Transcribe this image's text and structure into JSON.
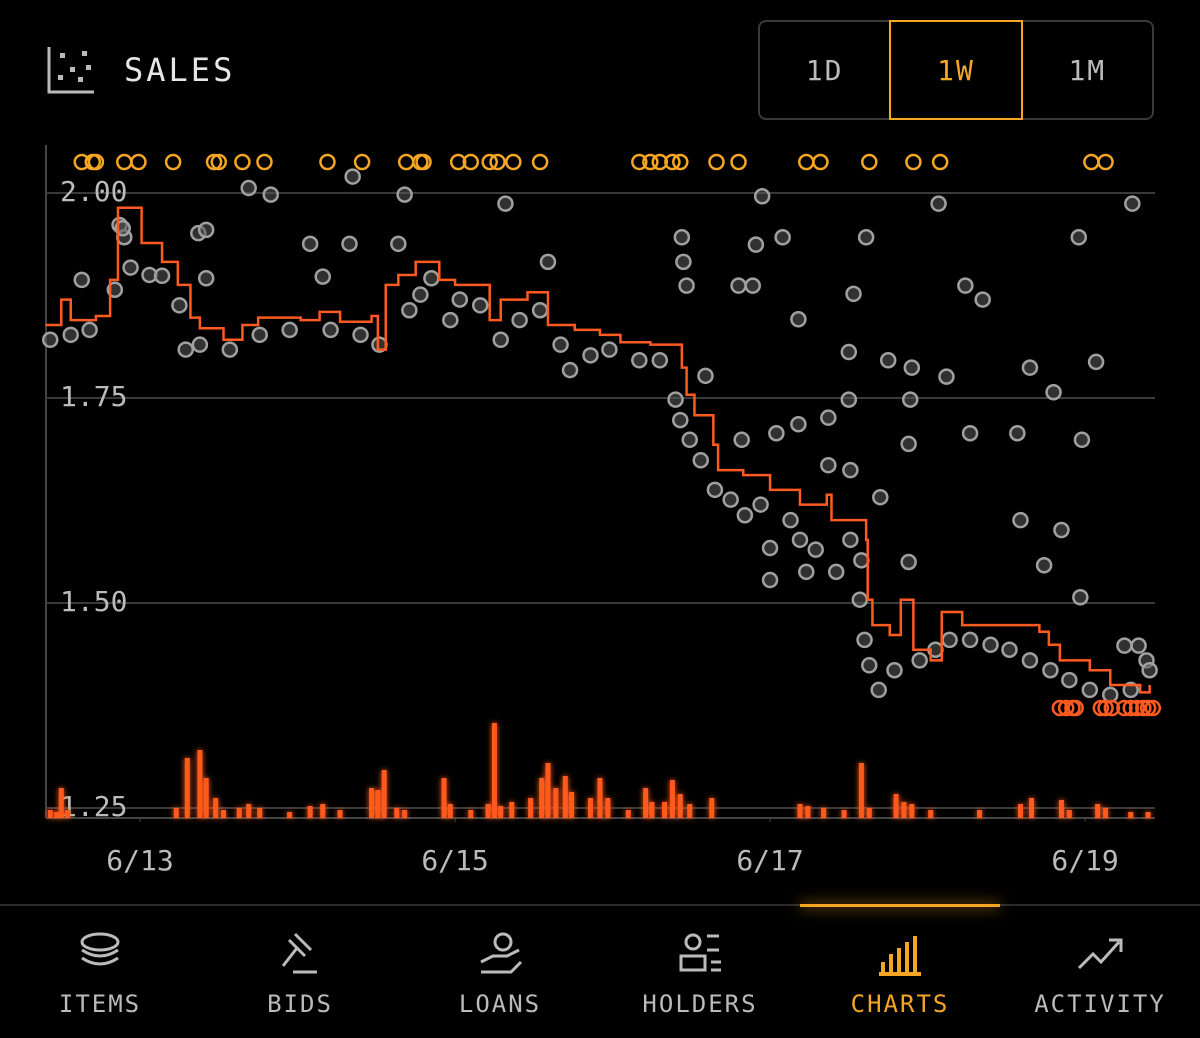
{
  "header": {
    "title": "SALES"
  },
  "range_buttons": [
    {
      "label": "1D"
    },
    {
      "label": "1W",
      "active": true
    },
    {
      "label": "1M"
    }
  ],
  "nav": {
    "tabs": [
      {
        "label": "ITEMS"
      },
      {
        "label": "BIDS"
      },
      {
        "label": "LOANS"
      },
      {
        "label": "HOLDERS"
      },
      {
        "label": "CHARTS",
        "active": true
      },
      {
        "label": "ACTIVITY"
      }
    ]
  },
  "chart_data": {
    "type": "scatter",
    "xlim": [
      12.403,
      19.444
    ],
    "xticks": [
      {
        "value": 13,
        "label": "6/13"
      },
      {
        "value": 15,
        "label": "6/15"
      },
      {
        "value": 17,
        "label": "6/17"
      },
      {
        "value": 19,
        "label": "6/19"
      }
    ],
    "ylim": [
      1.2378,
      2.0585
    ],
    "yticks": [
      1.25,
      {
        "value": 1.5,
        "label": "1.50"
      },
      1.75,
      {
        "value": 2,
        "label": "2.00"
      }
    ],
    "y2lim": [
      0,
      673
    ],
    "grid": true,
    "points": {
      "color": "#a0a0a0",
      "x": [
        12.63,
        12.87,
        12.9,
        13.06,
        13.14,
        13.37,
        13.42,
        13.42,
        13.69,
        13.83,
        14.08,
        14.16,
        14.33,
        14.35,
        14.64,
        14.68,
        14.85,
        15.32,
        15.59,
        16.44,
        16.45,
        16.47,
        16.8,
        16.89,
        16.95,
        16.91,
        17.08,
        17.18,
        17.53,
        17.61,
        18.07,
        18.24,
        18.35,
        17.75,
        17.9,
        18.12,
        18.65,
        18.8,
        19.07,
        18.96,
        19.3,
        18.98,
        18.27,
        18.57,
        17.88,
        17.5,
        16.59,
        16.82,
        17.04,
        17.18,
        17.37,
        17.5,
        17.89,
        18.59,
        18.85,
        18.74,
        18.97,
        17.88,
        17.0,
        17.0,
        17.23,
        17.42,
        17.58,
        17.7,
        17.51,
        17.37,
        19.34,
        19.25,
        19.39,
        12.43,
        12.56,
        12.68,
        12.84,
        12.89,
        12.94,
        13.25,
        13.29,
        13.38,
        13.57,
        13.76,
        13.95,
        14.21,
        14.4,
        14.52,
        14.71,
        14.78,
        14.97,
        15.03,
        15.16,
        15.29,
        15.41,
        15.54,
        15.67,
        15.73,
        15.86,
        15.98,
        16.17,
        16.3,
        16.4,
        16.43,
        16.49,
        16.56,
        16.65,
        16.75,
        16.84,
        16.94,
        17.13,
        17.19,
        17.29,
        17.51,
        17.57,
        17.6,
        17.63,
        17.69,
        17.79,
        17.95,
        18.05,
        18.14,
        18.27,
        18.4,
        18.52,
        18.65,
        18.78,
        18.9,
        19.03,
        19.16,
        19.29,
        19.41
      ],
      "y": [
        1.894,
        1.961,
        1.946,
        1.9,
        1.899,
        1.951,
        1.955,
        1.896,
        2.006,
        1.998,
        1.938,
        1.898,
        1.938,
        2.02,
        1.938,
        1.998,
        1.896,
        1.987,
        1.916,
        1.946,
        1.916,
        1.887,
        1.887,
        1.887,
        1.996,
        1.937,
        1.946,
        1.846,
        1.877,
        1.946,
        1.987,
        1.887,
        1.87,
        1.796,
        1.787,
        1.776,
        1.787,
        1.757,
        1.794,
        1.946,
        1.987,
        1.699,
        1.707,
        1.707,
        1.694,
        1.806,
        1.777,
        1.699,
        1.707,
        1.718,
        1.726,
        1.748,
        1.748,
        1.601,
        1.589,
        1.546,
        1.507,
        1.55,
        1.528,
        1.567,
        1.538,
        1.538,
        1.552,
        1.629,
        1.662,
        1.668,
        1.448,
        1.448,
        1.43,
        1.821,
        1.827,
        1.833,
        1.882,
        1.957,
        1.909,
        1.863,
        1.809,
        1.815,
        1.809,
        1.827,
        1.833,
        1.833,
        1.827,
        1.815,
        1.857,
        1.876,
        1.845,
        1.87,
        1.863,
        1.821,
        1.845,
        1.857,
        1.815,
        1.784,
        1.802,
        1.809,
        1.796,
        1.796,
        1.748,
        1.723,
        1.699,
        1.674,
        1.638,
        1.626,
        1.607,
        1.62,
        1.601,
        1.577,
        1.565,
        1.577,
        1.504,
        1.455,
        1.424,
        1.394,
        1.418,
        1.43,
        1.443,
        1.455,
        1.455,
        1.449,
        1.443,
        1.43,
        1.418,
        1.406,
        1.394,
        1.388,
        1.394,
        1.418
      ]
    },
    "line": {
      "color": "#ff5a1f",
      "x": [
        12.4,
        12.5,
        12.56,
        12.72,
        12.81,
        12.86,
        13.0,
        13.01,
        13.14,
        13.24,
        13.32,
        13.38,
        13.53,
        13.65,
        13.75,
        14.02,
        14.14,
        14.27,
        14.47,
        14.51,
        14.56,
        14.64,
        14.75,
        14.9,
        15.0,
        15.22,
        15.29,
        15.46,
        15.59,
        15.76,
        15.92,
        16.05,
        16.24,
        16.44,
        16.47,
        16.52,
        16.64,
        16.67,
        16.83,
        17.0,
        17.19,
        17.36,
        17.39,
        17.61,
        17.62,
        17.65,
        17.76,
        17.83,
        17.91,
        18.02,
        18.09,
        18.22,
        18.71,
        18.77,
        18.84,
        19.03,
        19.16,
        19.35,
        19.41
      ],
      "y": [
        1.839,
        1.87,
        1.845,
        1.85,
        1.894,
        1.982,
        1.982,
        1.939,
        1.916,
        1.888,
        1.848,
        1.835,
        1.821,
        1.839,
        1.848,
        1.845,
        1.855,
        1.843,
        1.85,
        1.809,
        1.888,
        1.9,
        1.916,
        1.894,
        1.888,
        1.845,
        1.87,
        1.879,
        1.839,
        1.833,
        1.827,
        1.818,
        1.815,
        1.787,
        1.754,
        1.729,
        1.693,
        1.662,
        1.656,
        1.638,
        1.62,
        1.632,
        1.601,
        1.577,
        1.504,
        1.473,
        1.461,
        1.504,
        1.443,
        1.43,
        1.489,
        1.473,
        1.465,
        1.449,
        1.43,
        1.418,
        1.4,
        1.391,
        1.4
      ]
    },
    "volume": {
      "color": "#ff5a1f",
      "axis": "y2",
      "x": [
        12.43,
        12.47,
        12.5,
        12.54,
        13.23,
        13.3,
        13.38,
        13.42,
        13.48,
        13.53,
        13.63,
        13.69,
        13.76,
        13.95,
        14.08,
        14.16,
        14.27,
        14.47,
        14.51,
        14.55,
        14.63,
        14.68,
        14.93,
        14.97,
        15.1,
        15.21,
        15.25,
        15.29,
        15.36,
        15.48,
        15.55,
        15.59,
        15.64,
        15.7,
        15.74,
        15.86,
        15.92,
        15.97,
        16.1,
        16.21,
        16.25,
        16.33,
        16.38,
        16.43,
        16.49,
        16.63,
        17.19,
        17.24,
        17.34,
        17.47,
        17.58,
        17.63,
        17.8,
        17.85,
        17.9,
        18.02,
        18.33,
        18.59,
        18.66,
        18.85,
        18.9,
        19.08,
        19.13,
        19.29,
        19.4
      ],
      "values": [
        8,
        6,
        30,
        8,
        10,
        60,
        68,
        40,
        20,
        8,
        10,
        14,
        10,
        6,
        12,
        14,
        8,
        30,
        28,
        48,
        10,
        8,
        40,
        14,
        8,
        14,
        95,
        12,
        16,
        20,
        40,
        55,
        30,
        42,
        26,
        20,
        40,
        20,
        8,
        30,
        16,
        16,
        38,
        24,
        14,
        20,
        14,
        12,
        10,
        8,
        55,
        10,
        24,
        16,
        14,
        8,
        8,
        14,
        20,
        18,
        8,
        14,
        10,
        6,
        6
      ]
    },
    "top_markers": {
      "color": "#f5a623",
      "x": [
        12.63,
        12.7,
        12.72,
        12.9,
        12.99,
        13.21,
        13.47,
        13.5,
        13.65,
        13.79,
        14.19,
        14.41,
        14.69,
        14.78,
        14.8,
        15.02,
        15.1,
        15.22,
        15.27,
        15.37,
        15.54,
        16.17,
        16.24,
        16.3,
        16.38,
        16.43,
        16.66,
        16.8,
        17.23,
        17.32,
        17.63,
        17.91,
        18.08,
        19.04,
        19.13
      ]
    },
    "bottom_markers": {
      "color": "#ff5a1f",
      "x": [
        18.84,
        18.88,
        18.92,
        18.94,
        19.1,
        19.13,
        19.17,
        19.25,
        19.29,
        19.33,
        19.37,
        19.4,
        19.43
      ]
    }
  }
}
